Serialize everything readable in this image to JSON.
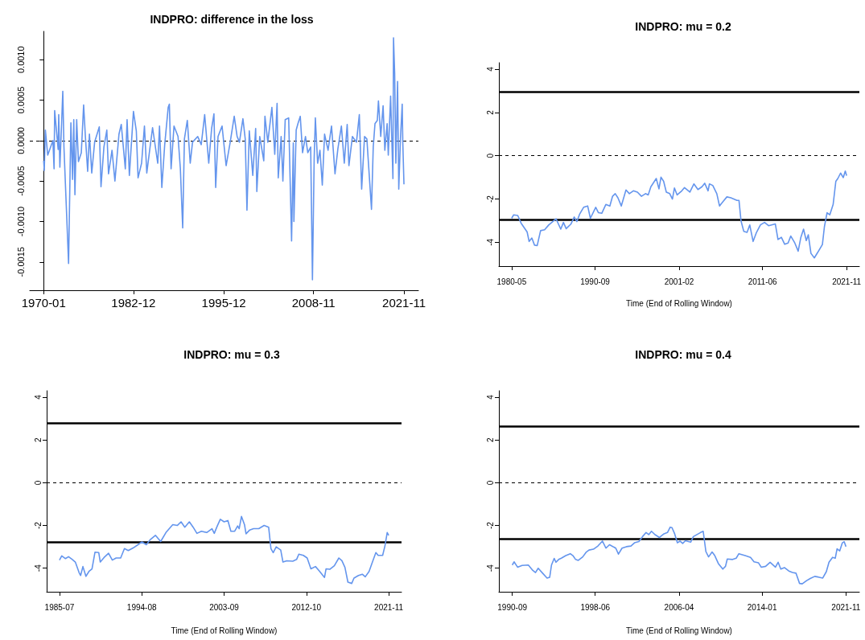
{
  "chart_data": [
    {
      "type": "line",
      "title": "INDPRO: difference in the loss",
      "xlim": [
        "1968-01",
        "2023-12"
      ],
      "xticks": [
        "1970-01",
        "1982-12",
        "1995-12",
        "2008-11",
        "2021-11"
      ],
      "ylim": [
        -0.00185,
        0.00135
      ],
      "yticks": [
        {
          "value": -0.0015,
          "label": "-0.0015"
        },
        {
          "value": -0.001,
          "label": "-0.0010"
        },
        {
          "value": -0.0005,
          "label": "-0.0005"
        },
        {
          "value": 0,
          "label": "0.0000"
        },
        {
          "value": 0.0005,
          "label": "0.0005"
        },
        {
          "value": 0.001,
          "label": "0.0010"
        }
      ],
      "ref_lines": [
        {
          "axis": "y",
          "value": 0,
          "color": "#000000",
          "line_style": "dashed"
        }
      ],
      "x": [
        "1970-01",
        "1970-02",
        "1970-04",
        "1970-08",
        "1971-05",
        "1971-07",
        "1971-08",
        "1972-02",
        "1972-03",
        "1972-05",
        "1972-08",
        "1972-10",
        "1972-12",
        "1973-08",
        "1973-12",
        "1974-03",
        "1974-05",
        "1974-07",
        "1974-10",
        "1975-01",
        "1975-06",
        "1975-10",
        "1976-01",
        "1976-05",
        "1976-08",
        "1976-12",
        "1977-05",
        "1978-01",
        "1978-04",
        "1978-09",
        "1979-02",
        "1979-05",
        "1979-11",
        "1980-04",
        "1980-11",
        "1981-03",
        "1981-10",
        "1982-01",
        "1982-05",
        "1982-12",
        "1983-05",
        "1983-08",
        "1984-02",
        "1984-07",
        "1984-11",
        "1985-04",
        "1985-09",
        "1986-06",
        "1986-09",
        "1987-01",
        "1987-06",
        "1987-12",
        "1988-02",
        "1988-05",
        "1988-10",
        "1989-05",
        "1989-09",
        "1990-01",
        "1990-04",
        "1990-09",
        "1991-02",
        "1991-06",
        "1992-03",
        "1992-09",
        "1993-03",
        "1993-10",
        "1994-03",
        "1994-07",
        "1994-10",
        "1995-02",
        "1995-09",
        "1996-04",
        "1996-11",
        "1997-06",
        "1997-11",
        "1998-03",
        "1998-09",
        "1999-01",
        "1999-04",
        "1999-08",
        "2000-02",
        "2000-07",
        "2000-09",
        "2001-02",
        "2001-09",
        "2001-11",
        "2002-04",
        "2002-11",
        "2003-04",
        "2003-08",
        "2003-10",
        "2004-03",
        "2004-06",
        "2004-10",
        "2005-04",
        "2005-09",
        "2005-12",
        "2006-01",
        "2006-05",
        "2006-08",
        "2006-12",
        "2007-04",
        "2007-09",
        "2008-01",
        "2008-06",
        "2008-09",
        "2008-12",
        "2009-02",
        "2009-06",
        "2009-10",
        "2010-02",
        "2010-06",
        "2010-12",
        "2011-06",
        "2011-12",
        "2012-05",
        "2012-11",
        "2013-04",
        "2013-09",
        "2013-12",
        "2014-06",
        "2015-01",
        "2015-06",
        "2015-10",
        "2016-03",
        "2016-07",
        "2017-03",
        "2017-06",
        "2017-09",
        "2018-01",
        "2018-03",
        "2018-07",
        "2018-11",
        "2019-02",
        "2019-06",
        "2019-08",
        "2019-12",
        "2020-04",
        "2020-05",
        "2020-07",
        "2020-09",
        "2020-12",
        "2021-02",
        "2021-05",
        "2021-08",
        "2021-09",
        "2021-11"
      ],
      "series": [
        {
          "color": "#6495ed",
          "values": [
            -0.00025,
            -0.00037,
            0.00013,
            -0.00018,
            0,
            -0.00035,
            0.00037,
            -0.00011,
            0.00032,
            -0.00033,
            0.00022,
            0.00061,
            -8e-05,
            -0.00152,
            0.00022,
            -0.00048,
            0.00026,
            -0.00067,
            0.00026,
            -0.00026,
            -0.00015,
            0.00044,
            5e-05,
            -0.00038,
            8e-05,
            -0.0004,
            -2e-05,
            0.00017,
            -0.00057,
            -8e-05,
            0.00013,
            -0.00041,
            -0.00012,
            -0.0005,
            8e-05,
            0.0002,
            -0.00035,
            0.00026,
            -0.00043,
            0.00036,
            0.00012,
            -0.00046,
            -0.00028,
            0.00018,
            -0.0004,
            -0.00012,
            0.00016,
            -0.00028,
            0.00018,
            -0.00058,
            -5e-05,
            0.00041,
            0.00045,
            -0.00035,
            0.00018,
            5e-05,
            -0.00035,
            -0.00108,
            2e-05,
            0.00025,
            -0.00028,
            -2e-05,
            5e-05,
            -5e-05,
            0.00032,
            -0.00028,
            0.00015,
            0.00033,
            -0.00058,
            5e-05,
            0.00018,
            -0.00031,
            -2e-05,
            0.0003,
            5e-05,
            -2e-05,
            0.00027,
            2e-05,
            -0.00086,
            0.00012,
            -0.00043,
            0.00015,
            -0.00063,
            5e-05,
            -0.00025,
            0.0003,
            -2e-05,
            0.00041,
            -0.00017,
            0.00046,
            -0.00046,
            5e-05,
            -0.0005,
            0.00026,
            0.00028,
            -0.00124,
            -3e-05,
            -0.001,
            0.00013,
            0.00021,
            0.0003,
            -0.00015,
            5e-05,
            -0.00015,
            -8e-05,
            -0.00172,
            -0.00022,
            0.00028,
            -0.00028,
            -0.00012,
            -0.00055,
            8e-05,
            -0.00012,
            0.00018,
            -0.00041,
            -0.0001,
            0.00018,
            -0.00028,
            0.0002,
            -0.00031,
            5e-05,
            -2e-05,
            0.00032,
            -0.0006,
            5e-05,
            2e-05,
            -0.00085,
            -8e-05,
            0.00021,
            0.00025,
            0.00049,
            5e-05,
            0.00043,
            -0.00012,
            0.00021,
            -0.00018,
            0.00055,
            -0.00047,
            0.00127,
            0.00083,
            -0.00028,
            0.00073,
            -0.0006,
            2e-05,
            0.00045,
            -2e-05,
            -0.00054
          ]
        }
      ]
    },
    {
      "type": "line",
      "title": "INDPRO: mu = 0.2",
      "xlabel": "Time (End of Rolling Window)",
      "xlim": [
        "1978-10",
        "2023-06"
      ],
      "xticks": [
        "1980-05",
        "1990-09",
        "2001-02",
        "2011-06",
        "2021-11"
      ],
      "ylim": [
        -5.1,
        4.3
      ],
      "yticks": [
        -4,
        -2,
        0,
        2,
        4
      ],
      "ref_lines": [
        {
          "axis": "y",
          "value": 2.95,
          "color": "#000000",
          "line_style": "solid"
        },
        {
          "axis": "y",
          "value": -2.95,
          "color": "#000000",
          "line_style": "solid"
        },
        {
          "axis": "y",
          "value": 0,
          "color": "#000000",
          "line_style": "dashed"
        }
      ],
      "x": [
        "1980-05",
        "1980-08",
        "1981-02",
        "1981-07",
        "1982-04",
        "1982-07",
        "1982-11",
        "1983-03",
        "1983-07",
        "1983-12",
        "1984-06",
        "1984-12",
        "1985-11",
        "1986-06",
        "1986-10",
        "1987-02",
        "1987-09",
        "1988-02",
        "1988-06",
        "1988-10",
        "1989-04",
        "1989-10",
        "1990-02",
        "1990-10",
        "1991-02",
        "1991-07",
        "1992-01",
        "1992-07",
        "1992-11",
        "1993-03",
        "1993-07",
        "1993-12",
        "1994-07",
        "1994-12",
        "1995-06",
        "1995-12",
        "1996-06",
        "1996-12",
        "1997-04",
        "1997-08",
        "1998-04",
        "1998-08",
        "1998-11",
        "1999-03",
        "1999-07",
        "1999-12",
        "2000-04",
        "2000-07",
        "2000-11",
        "2001-06",
        "2001-10",
        "2002-06",
        "2002-12",
        "2003-06",
        "2003-12",
        "2004-04",
        "2004-09",
        "2004-11",
        "2005-04",
        "2005-10",
        "2006-02",
        "2006-07",
        "2007-01",
        "2007-07",
        "2008-04",
        "2008-07",
        "2008-10",
        "2009-02",
        "2009-07",
        "2009-11",
        "2010-04",
        "2010-09",
        "2011-03",
        "2011-09",
        "2012-03",
        "2013-01",
        "2013-05",
        "2013-10",
        "2014-03",
        "2014-08",
        "2014-12",
        "2015-06",
        "2015-11",
        "2016-03",
        "2016-07",
        "2016-11",
        "2017-02",
        "2017-06",
        "2017-11",
        "2018-04",
        "2018-11",
        "2019-02",
        "2019-06",
        "2019-10",
        "2020-03",
        "2020-07",
        "2020-10",
        "2021-02",
        "2021-06",
        "2021-09",
        "2021-11"
      ],
      "series": [
        {
          "color": "#6495ed",
          "values": [
            -2.89,
            -2.73,
            -2.76,
            -3.11,
            -3.52,
            -3.96,
            -3.8,
            -4.13,
            -4.15,
            -3.46,
            -3.42,
            -3.2,
            -2.91,
            -3.39,
            -3.08,
            -3.37,
            -3.16,
            -2.83,
            -3.04,
            -2.7,
            -2.38,
            -2.32,
            -2.89,
            -2.38,
            -2.63,
            -2.66,
            -2.25,
            -2.32,
            -1.87,
            -1.75,
            -1.94,
            -2.32,
            -1.58,
            -1.75,
            -1.62,
            -1.68,
            -1.87,
            -1.75,
            -1.81,
            -1.43,
            -1.05,
            -1.53,
            -0.99,
            -1.18,
            -1.68,
            -1.75,
            -2.0,
            -1.49,
            -1.81,
            -1.62,
            -1.47,
            -1.68,
            -1.3,
            -1.56,
            -1.43,
            -1.27,
            -1.62,
            -1.3,
            -1.37,
            -1.75,
            -2.32,
            -2.13,
            -1.9,
            -1.94,
            -2.06,
            -2.06,
            -3.01,
            -3.49,
            -3.54,
            -3.2,
            -3.96,
            -3.54,
            -3.19,
            -3.08,
            -3.23,
            -3.15,
            -3.87,
            -3.77,
            -4.09,
            -4.03,
            -3.71,
            -4.03,
            -4.41,
            -3.77,
            -3.39,
            -3.92,
            -3.65,
            -4.51,
            -4.72,
            -4.47,
            -4.1,
            -3.27,
            -2.63,
            -2.73,
            -2.25,
            -1.18,
            -1.05,
            -0.8,
            -1.01,
            -0.71,
            -0.92
          ]
        }
      ]
    },
    {
      "type": "line",
      "title": "INDPRO: mu = 0.3",
      "xlabel": "Time (End of Rolling Window)",
      "xlim": [
        "1984-02",
        "2023-04"
      ],
      "xticks": [
        "1985-07",
        "1994-08",
        "2003-09",
        "2012-10",
        "2021-11"
      ],
      "ylim": [
        -5.1,
        4.3
      ],
      "yticks": [
        -4,
        -2,
        0,
        2,
        4
      ],
      "ref_lines": [
        {
          "axis": "y",
          "value": 2.77,
          "color": "#000000",
          "line_style": "solid"
        },
        {
          "axis": "y",
          "value": -2.77,
          "color": "#000000",
          "line_style": "solid"
        },
        {
          "axis": "y",
          "value": 0,
          "color": "#000000",
          "line_style": "dashed"
        }
      ],
      "x": [
        "1985-07",
        "1985-10",
        "1986-03",
        "1986-07",
        "1986-12",
        "1987-04",
        "1987-09",
        "1987-11",
        "1988-02",
        "1988-06",
        "1988-10",
        "1989-02",
        "1989-06",
        "1989-11",
        "1990-01",
        "1990-06",
        "1990-12",
        "1991-05",
        "1991-10",
        "1992-04",
        "1992-09",
        "1993-02",
        "1993-10",
        "1994-03",
        "1994-08",
        "1995-02",
        "1995-07",
        "1996-02",
        "1996-09",
        "1997-04",
        "1998-01",
        "1998-07",
        "1998-12",
        "1999-05",
        "1999-11",
        "2000-04",
        "2000-09",
        "2001-03",
        "2001-10",
        "2002-05",
        "2002-08",
        "2002-12",
        "2003-04",
        "2003-09",
        "2004-02",
        "2004-06",
        "2004-11",
        "2005-03",
        "2005-05",
        "2005-08",
        "2005-12",
        "2006-02",
        "2006-07",
        "2006-12",
        "2007-07",
        "2008-02",
        "2008-08",
        "2008-11",
        "2009-02",
        "2009-06",
        "2009-12",
        "2010-03",
        "2010-08",
        "2011-04",
        "2011-09",
        "2011-12",
        "2012-06",
        "2012-11",
        "2013-04",
        "2013-10",
        "2014-03",
        "2014-10",
        "2014-12",
        "2015-05",
        "2015-11",
        "2016-05",
        "2016-09",
        "2017-01",
        "2017-05",
        "2017-10",
        "2018-01",
        "2018-07",
        "2018-12",
        "2019-04",
        "2019-09",
        "2020-02",
        "2020-06",
        "2020-09",
        "2021-03",
        "2021-06",
        "2021-09",
        "2021-11"
      ],
      "series": [
        {
          "color": "#6495ed",
          "values": [
            -3.62,
            -3.42,
            -3.55,
            -3.46,
            -3.59,
            -3.71,
            -4.21,
            -4.34,
            -3.92,
            -4.38,
            -4.15,
            -4.03,
            -3.25,
            -3.27,
            -3.71,
            -3.5,
            -3.3,
            -3.62,
            -3.52,
            -3.52,
            -3.08,
            -3.17,
            -3.02,
            -2.9,
            -2.77,
            -2.9,
            -2.67,
            -2.46,
            -2.75,
            -2.33,
            -1.96,
            -2.0,
            -1.83,
            -2.08,
            -1.83,
            -2.08,
            -2.37,
            -2.27,
            -2.33,
            -2.15,
            -2.37,
            -2.02,
            -1.71,
            -1.83,
            -1.77,
            -2.27,
            -2.27,
            -2.02,
            -2.15,
            -1.58,
            -1.96,
            -2.39,
            -2.21,
            -2.15,
            -2.15,
            -2.0,
            -2.08,
            -3.08,
            -3.27,
            -3.0,
            -3.15,
            -3.71,
            -3.65,
            -3.67,
            -3.59,
            -3.34,
            -3.4,
            -3.52,
            -4.03,
            -3.92,
            -4.12,
            -4.43,
            -4.03,
            -4.05,
            -3.88,
            -3.52,
            -3.65,
            -3.96,
            -4.65,
            -4.71,
            -4.46,
            -4.34,
            -4.28,
            -4.4,
            -4.15,
            -3.65,
            -3.27,
            -3.4,
            -3.4,
            -2.96,
            -2.33,
            -2.46
          ]
        }
      ]
    },
    {
      "type": "line",
      "title": "INDPRO: mu = 0.4",
      "xlabel": "Time (End of Rolling Window)",
      "xlim": [
        "1989-06",
        "2023-02"
      ],
      "xticks": [
        "1990-09",
        "1998-06",
        "2006-04",
        "2014-01",
        "2021-11"
      ],
      "ylim": [
        -5.1,
        4.3
      ],
      "yticks": [
        -4,
        -2,
        0,
        2,
        4
      ],
      "ref_lines": [
        {
          "axis": "y",
          "value": 2.64,
          "color": "#000000",
          "line_style": "solid"
        },
        {
          "axis": "y",
          "value": -2.64,
          "color": "#000000",
          "line_style": "solid"
        },
        {
          "axis": "y",
          "value": 0,
          "color": "#000000",
          "line_style": "dashed"
        }
      ],
      "x": [
        "1990-09",
        "1990-11",
        "1991-03",
        "1991-08",
        "1992-03",
        "1992-08",
        "1992-11",
        "1993-02",
        "1993-07",
        "1993-12",
        "1994-03",
        "1994-05",
        "1994-08",
        "1994-10",
        "1995-01",
        "1995-04",
        "1995-09",
        "1996-02",
        "1996-05",
        "1996-08",
        "1996-11",
        "1997-04",
        "1997-08",
        "1997-11",
        "1998-04",
        "1998-09",
        "1999-02",
        "1999-06",
        "1999-10",
        "2000-05",
        "2000-08",
        "2000-12",
        "2001-05",
        "2001-10",
        "2002-02",
        "2002-07",
        "2002-11",
        "2003-03",
        "2003-06",
        "2003-09",
        "2004-01",
        "2004-06",
        "2004-11",
        "2005-03",
        "2005-06",
        "2005-08",
        "2005-11",
        "2006-02",
        "2006-05",
        "2006-08",
        "2006-11",
        "2007-05",
        "2007-08",
        "2008-04",
        "2008-07",
        "2008-10",
        "2009-01",
        "2009-05",
        "2009-08",
        "2009-12",
        "2010-05",
        "2010-08",
        "2010-10",
        "2011-04",
        "2011-08",
        "2011-11",
        "2012-06",
        "2012-12",
        "2013-04",
        "2013-09",
        "2013-12",
        "2014-05",
        "2014-10",
        "2015-04",
        "2015-07",
        "2015-10",
        "2016-02",
        "2016-07",
        "2016-11",
        "2017-03",
        "2017-07",
        "2017-10",
        "2018-03",
        "2018-07",
        "2018-12",
        "2019-05",
        "2019-09",
        "2020-01",
        "2020-04",
        "2020-08",
        "2020-11",
        "2021-01",
        "2021-04",
        "2021-07",
        "2021-09",
        "2021-11"
      ],
      "series": [
        {
          "color": "#6495ed",
          "values": [
            -3.85,
            -3.7,
            -3.95,
            -3.87,
            -3.85,
            -4.1,
            -4.2,
            -4.0,
            -4.23,
            -4.46,
            -4.42,
            -3.85,
            -3.54,
            -3.72,
            -3.59,
            -3.53,
            -3.41,
            -3.32,
            -3.41,
            -3.59,
            -3.63,
            -3.47,
            -3.24,
            -3.15,
            -3.11,
            -2.96,
            -2.73,
            -3.06,
            -2.9,
            -3.06,
            -3.34,
            -3.06,
            -2.99,
            -2.96,
            -2.81,
            -2.75,
            -2.52,
            -2.33,
            -2.43,
            -2.27,
            -2.43,
            -2.56,
            -2.39,
            -2.33,
            -2.08,
            -2.1,
            -2.39,
            -2.81,
            -2.73,
            -2.84,
            -2.71,
            -2.78,
            -2.52,
            -2.33,
            -2.27,
            -3.22,
            -3.47,
            -3.24,
            -3.41,
            -3.78,
            -4.04,
            -3.91,
            -3.57,
            -3.59,
            -3.53,
            -3.32,
            -3.41,
            -3.49,
            -3.7,
            -3.75,
            -3.95,
            -3.91,
            -3.72,
            -3.95,
            -3.72,
            -4.04,
            -3.97,
            -4.13,
            -4.2,
            -4.23,
            -4.71,
            -4.73,
            -4.58,
            -4.48,
            -4.38,
            -4.42,
            -4.46,
            -4.16,
            -3.72,
            -3.49,
            -3.53,
            -3.09,
            -3.19,
            -2.81,
            -2.76,
            -2.99
          ]
        }
      ]
    }
  ]
}
